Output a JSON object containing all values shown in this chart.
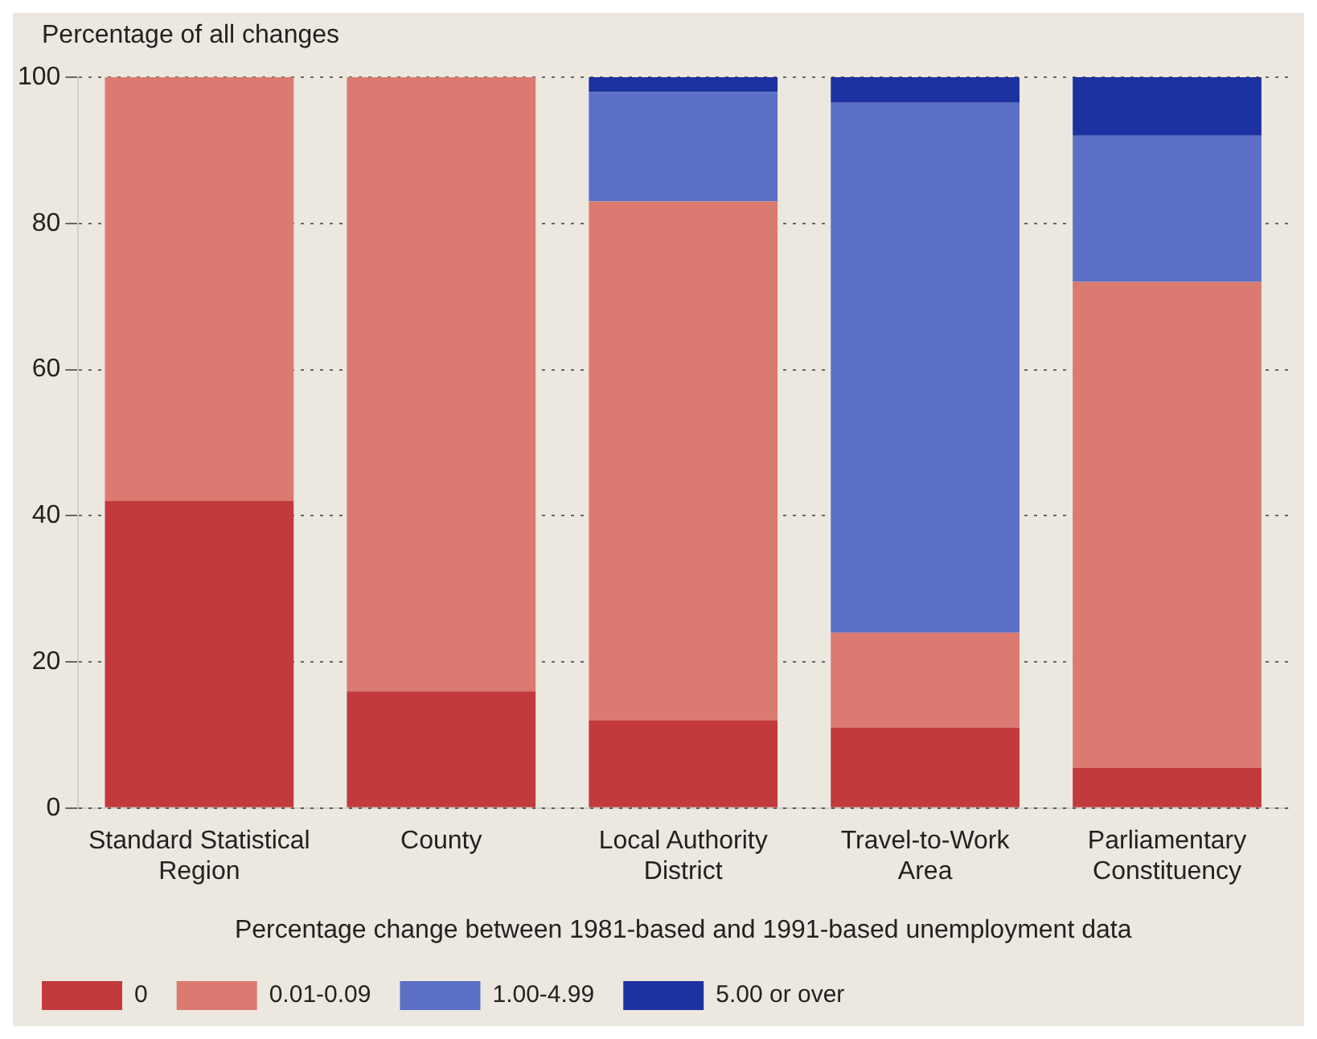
{
  "chart_data": {
    "type": "bar",
    "stacked": true,
    "ylabel": "Percentage of all changes",
    "xlabel": "Percentage change between 1981-based and 1991-based unemployment data",
    "categories": [
      "Standard Statistical Region",
      "County",
      "Local Authority District",
      "Travel-to-Work Area",
      "Parliamentary Constituency"
    ],
    "series": [
      {
        "name": "0",
        "color": "#c23a3c",
        "values": [
          42,
          16,
          12,
          11,
          5.5
        ]
      },
      {
        "name": "0.01-0.09",
        "color": "#db7a70",
        "values": [
          58,
          84,
          71,
          13,
          66.5
        ]
      },
      {
        "name": "1.00-4.99",
        "color": "#5b70c6",
        "values": [
          0,
          0,
          15,
          72.5,
          20
        ]
      },
      {
        "name": "5.00 or over",
        "color": "#1c32a0",
        "values": [
          0,
          0,
          2,
          3.5,
          8
        ]
      }
    ],
    "ylim": [
      0,
      100
    ],
    "yticks": [
      0,
      20,
      40,
      60,
      80,
      100
    ],
    "grid": "y",
    "legend": "bottom"
  }
}
